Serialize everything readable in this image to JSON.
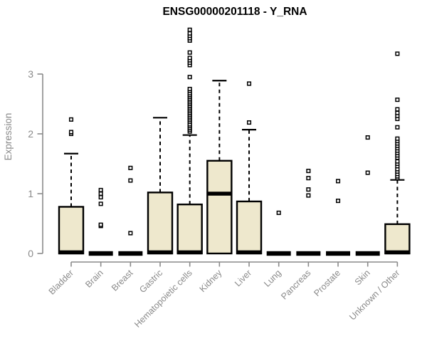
{
  "chart_data": {
    "type": "boxplot",
    "title": "ENSG00000201118 - Y_RNA",
    "ylabel": "Expression",
    "xlabel": "",
    "ylim": [
      0,
      3.9
    ],
    "yticks": [
      0,
      1,
      2,
      3
    ],
    "legend": "none",
    "grid": false,
    "box_fill": "#EEE8CD",
    "box_stroke": "#000000",
    "axis_color": "#8a8a8a",
    "title_color": "#000000",
    "groups": [
      {
        "label": "Bladder",
        "q1": 0,
        "median": 0.02,
        "q3": 0.78,
        "whisker_low": 0,
        "whisker_high": 1.67,
        "outliers": [
          2.0,
          2.03,
          2.24
        ]
      },
      {
        "label": "Brain",
        "q1": 0,
        "median": 0,
        "q3": 0,
        "whisker_low": 0,
        "whisker_high": 0,
        "outliers": [
          0.46,
          0.48,
          0.83,
          0.94,
          1.0,
          1.06
        ]
      },
      {
        "label": "Breast",
        "q1": 0,
        "median": 0,
        "q3": 0,
        "whisker_low": 0,
        "whisker_high": 0,
        "outliers": [
          0.34,
          1.22,
          1.43
        ]
      },
      {
        "label": "Gastric",
        "q1": 0,
        "median": 0.02,
        "q3": 1.02,
        "whisker_low": 0,
        "whisker_high": 2.27,
        "outliers": []
      },
      {
        "label": "Hematopoietic cells",
        "q1": 0,
        "median": 0.02,
        "q3": 0.82,
        "whisker_low": 0,
        "whisker_high": 1.98,
        "outliers": [
          2.04,
          2.07,
          2.1,
          2.13,
          2.16,
          2.2,
          2.23,
          2.26,
          2.29,
          2.32,
          2.35,
          2.38,
          2.41,
          2.44,
          2.47,
          2.5,
          2.53,
          2.56,
          2.59,
          2.62,
          2.65,
          2.68,
          2.72,
          2.75,
          2.95,
          3.15,
          3.19,
          3.23,
          3.27,
          3.36,
          3.56,
          3.6,
          3.64,
          3.68,
          3.74
        ]
      },
      {
        "label": "Kidney",
        "q1": 0,
        "median": 1.0,
        "q3": 1.55,
        "whisker_low": 0,
        "whisker_high": 2.89,
        "outliers": []
      },
      {
        "label": "Liver",
        "q1": 0,
        "median": 0.02,
        "q3": 0.87,
        "whisker_low": 0,
        "whisker_high": 2.07,
        "outliers": [
          2.19,
          2.84
        ]
      },
      {
        "label": "Lung",
        "q1": 0,
        "median": 0,
        "q3": 0,
        "whisker_low": 0,
        "whisker_high": 0,
        "outliers": [
          0.68
        ]
      },
      {
        "label": "Pancreas",
        "q1": 0,
        "median": 0,
        "q3": 0,
        "whisker_low": 0,
        "whisker_high": 0,
        "outliers": [
          0.97,
          1.07,
          1.26,
          1.38
        ]
      },
      {
        "label": "Prostate",
        "q1": 0,
        "median": 0,
        "q3": 0,
        "whisker_low": 0,
        "whisker_high": 0,
        "outliers": [
          0.88,
          1.21
        ]
      },
      {
        "label": "Skin",
        "q1": 0,
        "median": 0,
        "q3": 0,
        "whisker_low": 0,
        "whisker_high": 0,
        "outliers": [
          1.35,
          1.94
        ]
      },
      {
        "label": "Unknown / Other",
        "q1": 0,
        "median": 0.02,
        "q3": 0.49,
        "whisker_low": 0,
        "whisker_high": 1.23,
        "outliers": [
          1.26,
          1.29,
          1.33,
          1.37,
          1.41,
          1.46,
          1.5,
          1.54,
          1.6,
          1.64,
          1.68,
          1.72,
          1.76,
          1.8,
          1.84,
          1.88,
          1.92,
          2.11,
          2.25,
          2.3,
          2.35,
          2.41,
          2.57,
          3.34
        ]
      }
    ]
  }
}
